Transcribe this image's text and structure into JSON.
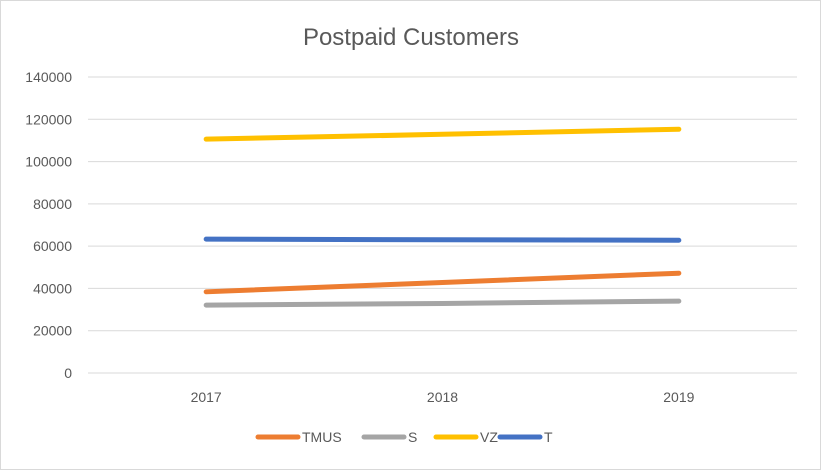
{
  "chart_data": {
    "type": "line",
    "title": "Postpaid Customers",
    "xlabel": "",
    "ylabel": "",
    "categories": [
      "2017",
      "2018",
      "2019"
    ],
    "ylim": [
      0,
      140000
    ],
    "yticks": [
      "0",
      "20000",
      "40000",
      "60000",
      "80000",
      "100000",
      "120000",
      "140000"
    ],
    "grid": true,
    "legend_position": "bottom",
    "series": [
      {
        "name": "TMUS",
        "color": "#ED7D31",
        "values": [
          38400,
          42800,
          47200
        ]
      },
      {
        "name": "S",
        "color": "#A5A5A5",
        "values": [
          32100,
          32900,
          34000
        ]
      },
      {
        "name": "VZ",
        "color": "#FFC000",
        "values": [
          110600,
          112900,
          115300
        ]
      },
      {
        "name": "T",
        "color": "#4472C4",
        "values": [
          63300,
          63000,
          62800
        ]
      }
    ]
  }
}
